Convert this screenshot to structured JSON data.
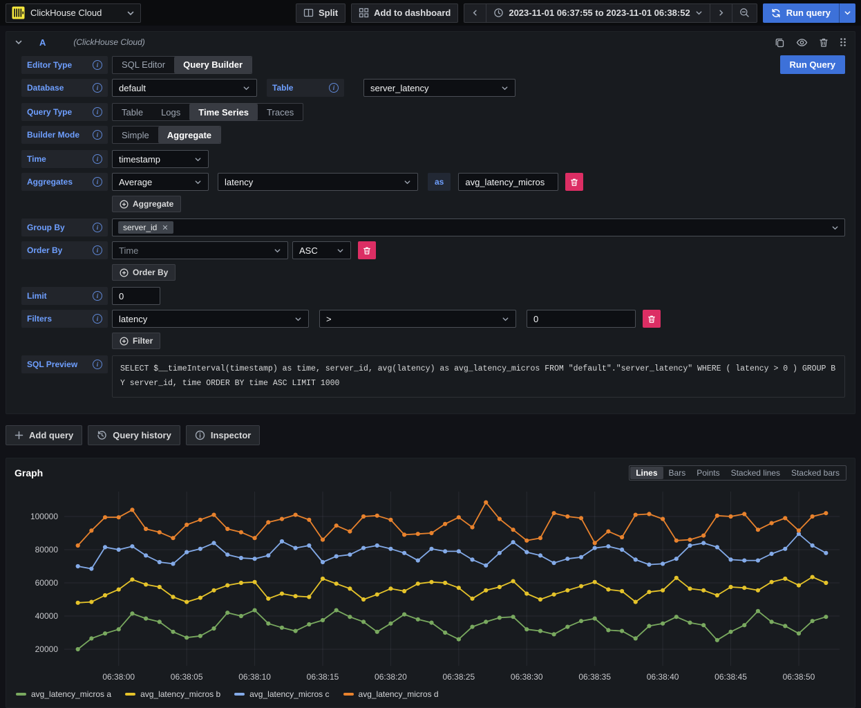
{
  "topbar": {
    "datasource_label": "ClickHouse Cloud",
    "split_label": "Split",
    "add_to_dashboard_label": "Add to dashboard",
    "time_range": "2023-11-01 06:37:55 to 2023-11-01 06:38:52",
    "run_query_label": "Run query"
  },
  "query_editor": {
    "ref_id": "A",
    "datasource_hint": "(ClickHouse Cloud)",
    "run_query_label": "Run Query",
    "editor_type": {
      "label": "Editor Type",
      "options": [
        "SQL Editor",
        "Query Builder"
      ],
      "selected": "Query Builder"
    },
    "database": {
      "label": "Database",
      "value": "default"
    },
    "table": {
      "label": "Table",
      "value": "server_latency"
    },
    "query_type": {
      "label": "Query Type",
      "options": [
        "Table",
        "Logs",
        "Time Series",
        "Traces"
      ],
      "selected": "Time Series"
    },
    "builder_mode": {
      "label": "Builder Mode",
      "options": [
        "Simple",
        "Aggregate"
      ],
      "selected": "Aggregate"
    },
    "time": {
      "label": "Time",
      "value": "timestamp"
    },
    "aggregates": {
      "label": "Aggregates",
      "function": "Average",
      "column": "latency",
      "as_label": "as",
      "alias": "avg_latency_micros",
      "add_label": "Aggregate"
    },
    "group_by": {
      "label": "Group By",
      "tag": "server_id"
    },
    "order_by": {
      "label": "Order By",
      "field": "Time",
      "direction": "ASC",
      "add_label": "Order By"
    },
    "limit": {
      "label": "Limit",
      "value": "0"
    },
    "filters": {
      "label": "Filters",
      "field": "latency",
      "operator": ">",
      "value": "0",
      "add_label": "Filter"
    },
    "sql_preview": {
      "label": "SQL Preview",
      "sql": "SELECT $__timeInterval(timestamp) as time, server_id, avg(latency) as avg_latency_micros FROM \"default\".\"server_latency\" WHERE ( latency > 0 ) GROUP BY server_id, time ORDER BY time ASC LIMIT 1000"
    }
  },
  "actions": {
    "add_query": "Add query",
    "query_history": "Query history",
    "inspector": "Inspector"
  },
  "graph": {
    "title": "Graph",
    "view_modes": [
      "Lines",
      "Bars",
      "Points",
      "Stacked lines",
      "Stacked bars"
    ],
    "selected_mode": "Lines"
  },
  "chart_data": {
    "type": "line",
    "title": "Graph",
    "legend_position": "bottom",
    "grid": true,
    "x_ticks": [
      "06:38:00",
      "06:38:05",
      "06:38:10",
      "06:38:15",
      "06:38:20",
      "06:38:25",
      "06:38:30",
      "06:38:35",
      "06:38:40",
      "06:38:45",
      "06:38:50"
    ],
    "x_tick_seconds": [
      0,
      5,
      10,
      15,
      20,
      25,
      30,
      35,
      40,
      45,
      50
    ],
    "x_start_seconds": -3,
    "x_step_seconds": 1,
    "x_range": [
      -4,
      53
    ],
    "y_ticks": [
      20000,
      40000,
      60000,
      80000,
      100000
    ],
    "ylim": [
      10000,
      115000
    ],
    "series": [
      {
        "name": "avg_latency_micros a",
        "color": "#79a95f",
        "values": [
          20000,
          26500,
          29500,
          32000,
          41500,
          38500,
          36500,
          30500,
          27000,
          28000,
          32500,
          42000,
          40000,
          43500,
          35500,
          33000,
          31000,
          35000,
          37500,
          43500,
          39500,
          36500,
          30500,
          35500,
          41000,
          38000,
          36000,
          30000,
          26000,
          33500,
          36500,
          39000,
          39500,
          32000,
          31000,
          29000,
          33500,
          37000,
          38500,
          31500,
          31000,
          26500,
          34000,
          35500,
          39500,
          36000,
          34500,
          25500,
          30500,
          34500,
          43000,
          36500,
          34000,
          29500,
          37000,
          39500
        ]
      },
      {
        "name": "avg_latency_micros b",
        "color": "#e5c32a",
        "values": [
          48000,
          48500,
          52500,
          56000,
          62000,
          59000,
          57500,
          51500,
          48500,
          51000,
          55500,
          58500,
          60000,
          60500,
          50500,
          53500,
          52000,
          51500,
          62500,
          59500,
          56500,
          50000,
          53000,
          56500,
          55000,
          59500,
          60500,
          60000,
          57000,
          50500,
          55500,
          57500,
          61000,
          53500,
          50000,
          53000,
          55500,
          58000,
          60500,
          56000,
          55000,
          48500,
          54500,
          55500,
          63000,
          56500,
          55500,
          52500,
          57500,
          57000,
          55500,
          60500,
          62500,
          58500,
          63500,
          60000
        ]
      },
      {
        "name": "avg_latency_micros c",
        "color": "#83aae8",
        "values": [
          70000,
          68500,
          81500,
          80000,
          82000,
          76500,
          72500,
          71500,
          78500,
          80500,
          84000,
          77000,
          75000,
          74500,
          76500,
          85000,
          81000,
          82500,
          72500,
          76000,
          77000,
          81000,
          82500,
          80500,
          78000,
          73500,
          80500,
          79000,
          79000,
          74000,
          70500,
          78000,
          84500,
          78500,
          76500,
          72000,
          74500,
          75500,
          81000,
          82000,
          80000,
          74000,
          71000,
          71500,
          74500,
          82500,
          84000,
          81500,
          74000,
          73500,
          73500,
          77500,
          80500,
          89500,
          82500,
          78000
        ]
      },
      {
        "name": "avg_latency_micros d",
        "color": "#e8822d",
        "values": [
          82500,
          91500,
          99500,
          99500,
          104000,
          92500,
          90500,
          87000,
          95000,
          98000,
          101000,
          92500,
          90500,
          87000,
          96500,
          98500,
          101000,
          98000,
          86000,
          94500,
          91000,
          100000,
          100500,
          98000,
          89000,
          89500,
          90000,
          95500,
          99500,
          93500,
          108500,
          98500,
          92000,
          85500,
          87000,
          102000,
          100000,
          99000,
          84000,
          91000,
          87500,
          101000,
          101500,
          98500,
          85500,
          86000,
          88500,
          100500,
          100000,
          101500,
          92000,
          96000,
          99000,
          91500,
          100000,
          102000
        ]
      }
    ]
  }
}
